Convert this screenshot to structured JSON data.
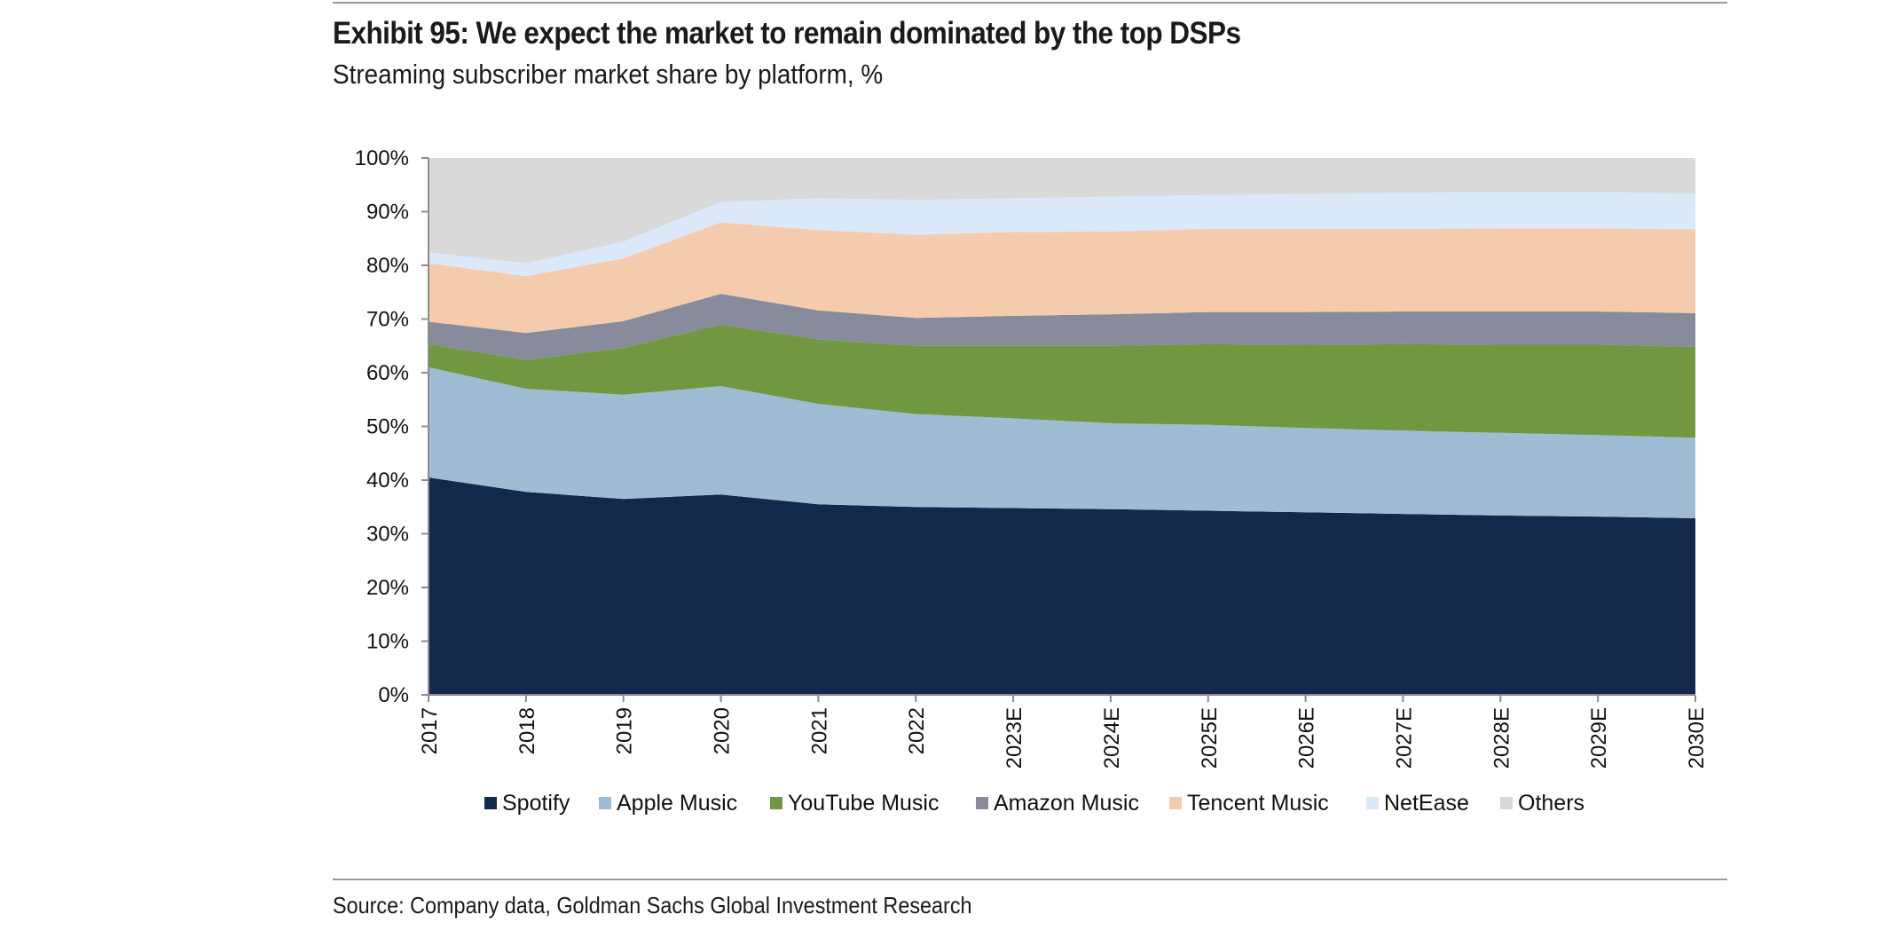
{
  "header": {
    "title": "Exhibit 95: We expect the market to remain dominated by the top DSPs",
    "subtitle": "Streaming subscriber market share by platform, %"
  },
  "footer": {
    "source": "Source: Company data, Goldman Sachs Global Investment Research"
  },
  "chart_data": {
    "type": "area",
    "stacked": true,
    "x": [
      "2017",
      "2018",
      "2019",
      "2020",
      "2021",
      "2022",
      "2023E",
      "2024E",
      "2025E",
      "2026E",
      "2027E",
      "2028E",
      "2029E",
      "2030E"
    ],
    "y_ticks": [
      "0%",
      "10%",
      "20%",
      "30%",
      "40%",
      "50%",
      "60%",
      "70%",
      "80%",
      "90%",
      "100%"
    ],
    "ylim": [
      0,
      100
    ],
    "grid": false,
    "legend_position": "bottom",
    "series": [
      {
        "name": "Spotify",
        "color": "#13294b",
        "values": [
          40.5,
          37.8,
          36.5,
          37.3,
          35.5,
          35.0,
          34.8,
          34.6,
          34.3,
          34.0,
          33.7,
          33.4,
          33.2,
          32.9
        ]
      },
      {
        "name": "Apple Music",
        "color": "#a0bcd4",
        "values": [
          20.5,
          19.2,
          19.4,
          20.2,
          18.7,
          17.3,
          16.7,
          16.0,
          16.0,
          15.7,
          15.5,
          15.4,
          15.2,
          15.0
        ]
      },
      {
        "name": "YouTube Music",
        "color": "#719741",
        "values": [
          4.3,
          5.4,
          8.7,
          11.5,
          12.0,
          12.7,
          13.5,
          14.4,
          15.0,
          15.5,
          16.1,
          16.4,
          16.8,
          16.9
        ]
      },
      {
        "name": "Amazon Music",
        "color": "#878b9b",
        "values": [
          4.2,
          5.0,
          5.0,
          5.7,
          5.4,
          5.2,
          5.6,
          5.9,
          6.0,
          6.1,
          6.1,
          6.2,
          6.2,
          6.3
        ]
      },
      {
        "name": "Tencent Music",
        "color": "#f5cbad",
        "values": [
          10.9,
          10.6,
          11.7,
          13.3,
          15.0,
          15.5,
          15.6,
          15.4,
          15.5,
          15.5,
          15.4,
          15.5,
          15.5,
          15.6
        ]
      },
      {
        "name": "NetEase",
        "color": "#dbe9fb",
        "values": [
          2.0,
          2.4,
          3.1,
          3.8,
          5.9,
          6.5,
          6.3,
          6.5,
          6.3,
          6.5,
          6.7,
          6.8,
          6.8,
          6.6
        ]
      },
      {
        "name": "Others",
        "color": "#d9d9d9",
        "values": [
          17.6,
          19.6,
          15.6,
          8.2,
          7.5,
          7.8,
          7.5,
          7.2,
          6.9,
          6.7,
          6.5,
          6.3,
          6.3,
          6.7
        ]
      }
    ]
  }
}
